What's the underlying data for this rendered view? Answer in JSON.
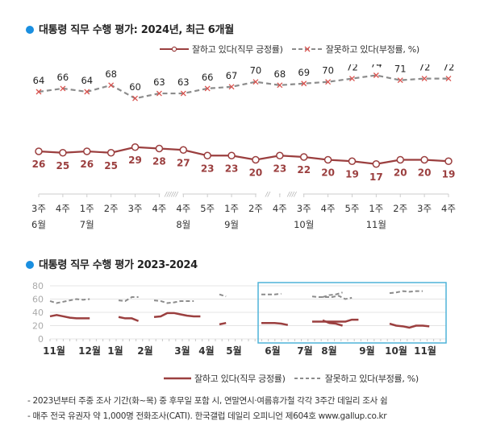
{
  "chart_data": [
    {
      "type": "line",
      "title": "대통령 직무 수행 평가: 2024년, 최근 6개월",
      "xlabel": "",
      "ylabel": "",
      "x": [
        "3주",
        "4주",
        "1주",
        "2주",
        "3주",
        "4주",
        "4주",
        "5주",
        "1주",
        "2주",
        "4주",
        "3주",
        "4주",
        "5주",
        "1주",
        "2주",
        "3주",
        "4주"
      ],
      "month_labels": [
        {
          "index": 0,
          "label": "6월"
        },
        {
          "index": 2,
          "label": "7월"
        },
        {
          "index": 6,
          "label": "8월"
        },
        {
          "index": 8,
          "label": "9월"
        },
        {
          "index": 11,
          "label": "10월"
        },
        {
          "index": 14,
          "label": "11월"
        }
      ],
      "axis_breaks": [
        {
          "between": [
            5,
            6
          ],
          "mark": "//////"
        },
        {
          "between": [
            9,
            10
          ],
          "mark": "//"
        },
        {
          "between": [
            10,
            11
          ],
          "mark": "////"
        }
      ],
      "series": [
        {
          "name": "잘하고 있다(직무 긍정률)",
          "color": "#9b3f3f",
          "style": "solid-circle",
          "values": [
            26,
            25,
            26,
            25,
            29,
            28,
            27,
            23,
            23,
            20,
            23,
            22,
            20,
            19,
            17,
            20,
            20,
            19
          ]
        },
        {
          "name": "잘못하고 있다(부정률, %)",
          "color": "#8c8c8c",
          "marker_color": "#d9534f",
          "style": "dashed-x",
          "values": [
            64,
            66,
            64,
            68,
            60,
            63,
            63,
            66,
            67,
            70,
            68,
            69,
            70,
            72,
            74,
            71,
            72,
            72
          ]
        }
      ],
      "ylim": [
        0,
        80
      ],
      "grid": false,
      "legend": "top-right"
    },
    {
      "type": "line",
      "title": "대통령 직무 수행 평가 2023-2024",
      "xlabel": "",
      "ylabel": "",
      "yticks": [
        0,
        20,
        40,
        60,
        80
      ],
      "ylim": [
        0,
        80
      ],
      "grid": true,
      "month_labels": [
        "11월",
        "12월",
        "1월",
        "2월",
        "3월",
        "4월",
        "5월",
        "6월",
        "7월",
        "8월",
        "9월",
        "10월",
        "11월"
      ],
      "highlight": "6월–11월 (최근 6개월)",
      "series": [
        {
          "name": "잘하고 있다(직무 긍정률)",
          "color": "#9b3f3f",
          "style": "solid",
          "segments": [
            [
              34,
              36,
              34,
              32,
              31,
              31,
              31
            ],
            [
              33,
              31,
              31,
              27
            ],
            [
              33,
              34,
              39,
              39,
              37,
              35,
              34,
              34
            ],
            [
              22,
              24
            ],
            [
              24,
              24,
              24,
              23,
              21
            ],
            [
              26,
              26,
              26,
              26,
              26,
              26,
              29,
              29
            ],
            [
              28,
              24,
              23,
              20
            ],
            [
              23,
              20,
              19,
              17,
              20,
              20,
              19
            ]
          ]
        },
        {
          "name": "잘못하고 있다(부정률, %)",
          "color": "#8c8c8c",
          "style": "dashed",
          "segments": [
            [
              57,
              54,
              56,
              58,
              60,
              59,
              60
            ],
            [
              58,
              57,
              63,
              63
            ],
            [
              58,
              57,
              54,
              55,
              57,
              57,
              57
            ],
            [
              67,
              64
            ],
            [
              67,
              67,
              67,
              68
            ],
            [
              64,
              63,
              63,
              63,
              65,
              60,
              62
            ],
            [
              63,
              66,
              67,
              70
            ],
            [
              69,
              70,
              72,
              71,
              72,
              72
            ]
          ]
        }
      ],
      "legend": "bottom-right"
    }
  ],
  "chart1": {
    "title": "대통령 직무 수행 평가: 2024년, 최근 6개월",
    "legend_positive": "잘하고 있다(직무 긍정률)",
    "legend_negative": "잘못하고 있다(부정률, %)"
  },
  "chart2": {
    "title": "대통령 직무 수행 평가 2023-2024",
    "legend_positive": "잘하고 있다(직무 긍정률)",
    "legend_negative": "잘못하고 있다(부정률, %)"
  },
  "notes": [
    "- 2023년부터 주중 조사 기간(화~목) 중 후무일 포함 시, 연말연시·여름휴가철 각각 3주간 데일리 조사 쉼",
    "- 매주 전국 유권자 약 1,000명 전화조사(CATI). 한국갤럽 데일리 오피니언 제604호 www.gallup.co.kr"
  ],
  "colors": {
    "accent_dot": "#1a8fe0",
    "positive": "#9b3f3f",
    "negative": "#8c8c8c",
    "negative_marker": "#d9534f",
    "highlight_box": "#4fb3d9"
  }
}
